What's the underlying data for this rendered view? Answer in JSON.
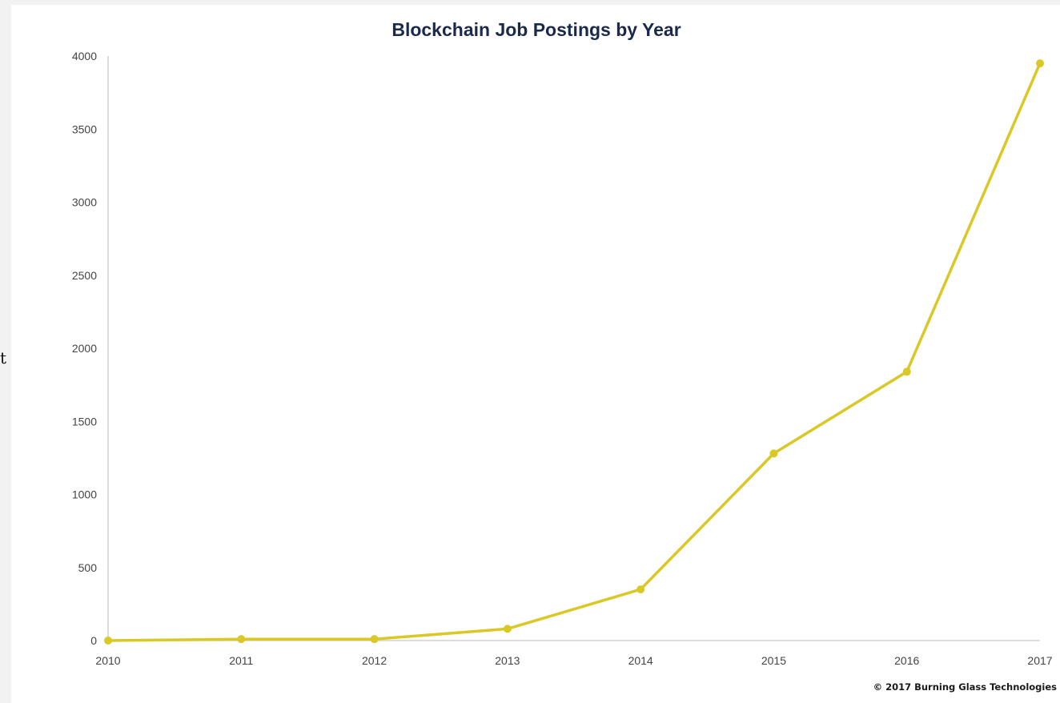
{
  "stray_glyph": "t",
  "copyright": "© 2017 Burning Glass Technologies",
  "colors": {
    "line": "#d9c826",
    "title": "#1b2a4a",
    "axis": "#d0d0d0",
    "tick_text": "#444444",
    "background_strip": "#f2f2f2"
  },
  "chart_data": {
    "type": "line",
    "title": "Blockchain Job Postings by Year",
    "xlabel": "",
    "ylabel": "",
    "x": [
      "2010",
      "2011",
      "2012",
      "2013",
      "2014",
      "2015",
      "2016",
      "2017"
    ],
    "y_ticks": [
      "0",
      "500",
      "1000",
      "1500",
      "2000",
      "2500",
      "3000",
      "3500",
      "4000"
    ],
    "ylim": [
      0,
      4000
    ],
    "grid": false,
    "legend": "none",
    "series": [
      {
        "values": [
          0,
          10,
          10,
          80,
          350,
          1280,
          1840,
          3950
        ]
      }
    ]
  }
}
